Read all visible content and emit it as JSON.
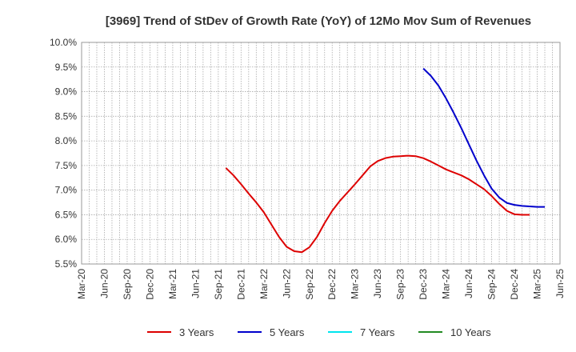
{
  "chart_data": {
    "type": "line",
    "title": "[3969]  Trend of StDev of Growth Rate (YoY) of 12Mo Mov Sum of Revenues",
    "xlabel": "",
    "ylabel": "",
    "ylim": [
      5.5,
      10.0
    ],
    "yticks": [
      "5.5%",
      "6.0%",
      "6.5%",
      "7.0%",
      "7.5%",
      "8.0%",
      "8.5%",
      "9.0%",
      "9.5%",
      "10.0%"
    ],
    "ytick_values": [
      5.5,
      6.0,
      6.5,
      7.0,
      7.5,
      8.0,
      8.5,
      9.0,
      9.5,
      10.0
    ],
    "x_categories": [
      "Mar-20",
      "Jun-20",
      "Sep-20",
      "Dec-20",
      "Mar-21",
      "Jun-21",
      "Sep-21",
      "Dec-21",
      "Mar-22",
      "Jun-22",
      "Sep-22",
      "Dec-22",
      "Mar-23",
      "Jun-23",
      "Sep-23",
      "Dec-23",
      "Mar-24",
      "Jun-24",
      "Sep-24",
      "Dec-24",
      "Mar-25",
      "Jun-25"
    ],
    "grid": true,
    "legend_position": "bottom",
    "series": [
      {
        "name": "3 Years",
        "color": "#dd0000",
        "start_index": 19,
        "values": [
          7.45,
          7.3,
          7.12,
          6.93,
          6.75,
          6.55,
          6.3,
          6.05,
          5.85,
          5.76,
          5.74,
          5.84,
          6.05,
          6.33,
          6.58,
          6.78,
          6.95,
          7.12,
          7.3,
          7.48,
          7.59,
          7.65,
          7.68,
          7.69,
          7.7,
          7.69,
          7.65,
          7.58,
          7.5,
          7.42,
          7.36,
          7.3,
          7.22,
          7.12,
          7.02,
          6.88,
          6.72,
          6.58,
          6.51,
          6.5,
          6.5
        ]
      },
      {
        "name": "5 Years",
        "color": "#0000cc",
        "start_index": 45,
        "values": [
          9.47,
          9.32,
          9.12,
          8.86,
          8.57,
          8.26,
          7.93,
          7.6,
          7.3,
          7.03,
          6.85,
          6.74,
          6.7,
          6.68,
          6.67,
          6.66,
          6.66
        ]
      },
      {
        "name": "7 Years",
        "color": "#00e5ee",
        "start_index": 0,
        "values": []
      },
      {
        "name": "10 Years",
        "color": "#228b22",
        "start_index": 0,
        "values": []
      }
    ]
  }
}
